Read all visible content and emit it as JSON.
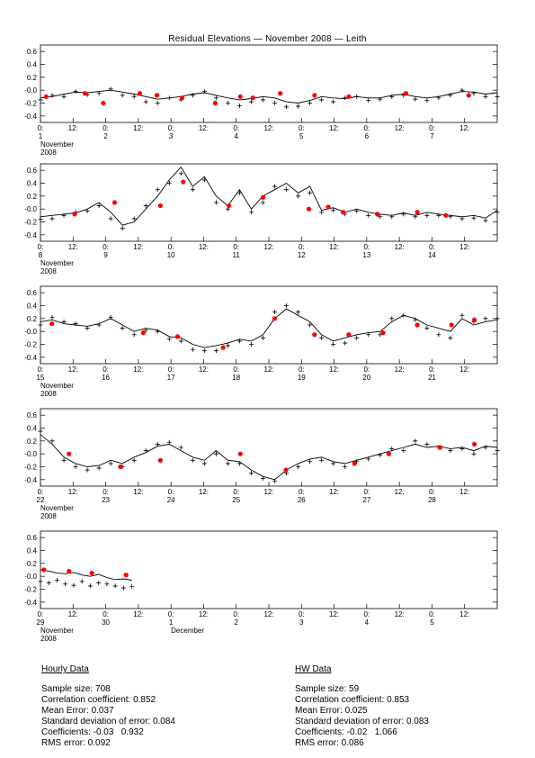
{
  "page": {
    "title": "Residual Elevations — November 2008 — Leith"
  },
  "month_label": "November",
  "year_label": "2008",
  "december_label": "December",
  "stats": {
    "hourly": {
      "heading": "Hourly Data",
      "lines": [
        "Sample size: 708",
        "Correlation coefficient: 0.852",
        "Mean Error: 0.037",
        "Standard deviation of error: 0.084",
        "Coefficients: -0.03   0.932",
        "RMS error: 0.092"
      ]
    },
    "hw": {
      "heading": "HW Data",
      "lines": [
        "Sample size: 59",
        "Correlation coefficient: 0.853",
        "Mean Error: 0.025",
        "Standard deviation of error: 0.083",
        "Coefficients: -0.02   1.066",
        "RMS error: 0.086"
      ]
    }
  },
  "colors": {
    "line": "#000000",
    "observed_cross": "#000000",
    "hw_marker": "#ff0000"
  },
  "chart_data": [
    {
      "type": "line",
      "panel": "Nov 1-7",
      "x_ticks": [
        "0:",
        "12:",
        "0:",
        "12:",
        "0:",
        "12:",
        "0:",
        "12:",
        "0:",
        "12:",
        "0:",
        "12:",
        "0:",
        "12:"
      ],
      "day_labels": [
        "1",
        "2",
        "3",
        "4",
        "5",
        "6",
        "7"
      ],
      "ylim": [
        -0.5,
        0.7
      ],
      "y_ticks": [
        "-0.4",
        "-0.2",
        "-0.0",
        "0.2",
        "0.4",
        "0.6"
      ],
      "series": [
        {
          "role": "model_line",
          "values": [
            -0.12,
            -0.1,
            -0.06,
            -0.03,
            -0.04,
            -0.02,
            0.0,
            -0.03,
            -0.06,
            -0.1,
            -0.14,
            -0.12,
            -0.1,
            -0.06,
            -0.04,
            -0.08,
            -0.12,
            -0.15,
            -0.13,
            -0.1,
            -0.12,
            -0.18,
            -0.2,
            -0.16,
            -0.1,
            -0.12,
            -0.13,
            -0.1,
            -0.12,
            -0.12,
            -0.08,
            -0.06,
            -0.1,
            -0.12,
            -0.1,
            -0.06,
            -0.02,
            -0.03,
            -0.06,
            -0.04
          ]
        },
        {
          "role": "observed",
          "values": [
            -0.15,
            -0.08,
            -0.1,
            -0.02,
            -0.07,
            -0.05,
            0.02,
            -0.08,
            -0.1,
            -0.18,
            -0.2,
            -0.12,
            -0.15,
            -0.08,
            -0.02,
            -0.12,
            -0.2,
            -0.24,
            -0.18,
            -0.15,
            -0.2,
            -0.26,
            -0.25,
            -0.2,
            -0.15,
            -0.18,
            -0.12,
            -0.1,
            -0.16,
            -0.14,
            -0.1,
            -0.08,
            -0.14,
            -0.16,
            -0.12,
            -0.08,
            0.0,
            -0.05,
            -0.1,
            -0.1
          ]
        },
        {
          "role": "hw_points",
          "x": [
            0.5,
            3.9,
            5.5,
            8.7,
            10.2,
            12.4,
            15.3,
            17.5,
            18.6,
            21.0,
            24.0,
            27.0,
            32.0,
            37.5
          ],
          "values": [
            -0.1,
            -0.05,
            -0.2,
            -0.05,
            -0.08,
            -0.12,
            -0.2,
            -0.1,
            -0.12,
            -0.05,
            -0.08,
            -0.1,
            -0.05,
            -0.08
          ]
        }
      ]
    },
    {
      "type": "line",
      "panel": "Nov 8-14",
      "x_ticks": [
        "0:",
        "12:",
        "0:",
        "12:",
        "0:",
        "12:",
        "0:",
        "12:",
        "0:",
        "12:",
        "0:",
        "12:",
        "0:",
        "12:"
      ],
      "day_labels": [
        "8",
        "9",
        "10",
        "11",
        "12",
        "13",
        "14"
      ],
      "ylim": [
        -0.5,
        0.7
      ],
      "y_ticks": [
        "-0.4",
        "-0.2",
        "-0.0",
        "0.2",
        "0.4",
        "0.6"
      ],
      "series": [
        {
          "role": "model_line",
          "values": [
            -0.12,
            -0.1,
            -0.08,
            -0.06,
            0.0,
            0.1,
            -0.05,
            -0.25,
            -0.2,
            0.0,
            0.2,
            0.45,
            0.65,
            0.35,
            0.5,
            0.2,
            0.05,
            0.3,
            0.0,
            0.2,
            0.3,
            0.4,
            0.25,
            0.35,
            -0.02,
            0.02,
            -0.05,
            0.0,
            -0.05,
            -0.08,
            -0.1,
            -0.06,
            -0.1,
            -0.05,
            -0.08,
            -0.1,
            -0.12,
            -0.1,
            -0.14,
            -0.02
          ]
        },
        {
          "role": "observed",
          "values": [
            -0.16,
            -0.15,
            -0.1,
            -0.05,
            -0.03,
            0.05,
            -0.15,
            -0.3,
            -0.15,
            0.05,
            0.3,
            0.4,
            0.55,
            0.3,
            0.45,
            0.1,
            0.0,
            0.25,
            -0.05,
            0.1,
            0.35,
            0.3,
            0.2,
            0.25,
            -0.05,
            -0.02,
            -0.08,
            -0.03,
            -0.1,
            -0.12,
            -0.12,
            -0.08,
            -0.12,
            -0.1,
            -0.1,
            -0.12,
            -0.15,
            -0.14,
            -0.18,
            -0.05
          ]
        },
        {
          "role": "hw_points",
          "x": [
            3.0,
            6.5,
            10.5,
            12.5,
            16.5,
            19.5,
            23.5,
            25.2,
            26.5,
            29.5,
            33.0,
            35.5
          ],
          "values": [
            -0.08,
            0.1,
            0.05,
            0.42,
            0.05,
            0.18,
            0.0,
            0.03,
            -0.05,
            -0.08,
            -0.05,
            -0.1
          ]
        }
      ]
    },
    {
      "type": "line",
      "panel": "Nov 15-21",
      "x_ticks": [
        "0:",
        "12:",
        "0:",
        "12:",
        "0:",
        "12:",
        "0:",
        "12:",
        "0:",
        "12:",
        "0:",
        "12:",
        "0:",
        "12:"
      ],
      "day_labels": [
        "15",
        "16",
        "17",
        "18",
        "19",
        "20",
        "21"
      ],
      "ylim": [
        -0.5,
        0.7
      ],
      "y_ticks": [
        "-0.4",
        "-0.2",
        "-0.0",
        "0.2",
        "0.4",
        "0.6"
      ],
      "series": [
        {
          "role": "model_line",
          "values": [
            0.15,
            0.18,
            0.12,
            0.1,
            0.08,
            0.12,
            0.2,
            0.1,
            0.0,
            0.05,
            0.02,
            -0.08,
            -0.1,
            -0.2,
            -0.25,
            -0.22,
            -0.18,
            -0.12,
            -0.15,
            -0.05,
            0.2,
            0.35,
            0.25,
            0.15,
            -0.05,
            -0.15,
            -0.1,
            -0.05,
            -0.02,
            0.0,
            0.15,
            0.25,
            0.2,
            0.1,
            0.05,
            0.0,
            0.2,
            0.1,
            0.15,
            0.18
          ]
        },
        {
          "role": "observed",
          "values": [
            0.1,
            0.22,
            0.15,
            0.12,
            0.05,
            0.1,
            0.22,
            0.05,
            -0.05,
            0.02,
            0.0,
            -0.12,
            -0.15,
            -0.28,
            -0.3,
            -0.3,
            -0.22,
            -0.15,
            -0.2,
            -0.1,
            0.3,
            0.4,
            0.3,
            0.1,
            -0.1,
            -0.2,
            -0.18,
            -0.1,
            -0.05,
            -0.05,
            0.2,
            0.25,
            0.18,
            0.05,
            -0.05,
            -0.1,
            0.25,
            0.15,
            0.2,
            0.2
          ]
        },
        {
          "role": "hw_points",
          "x": [
            1.0,
            9.0,
            12.0,
            16.0,
            20.5,
            24.0,
            27.0,
            30.0,
            33.0,
            36.0,
            38.0
          ],
          "values": [
            0.12,
            -0.02,
            -0.08,
            -0.25,
            0.2,
            -0.05,
            -0.05,
            -0.02,
            0.1,
            0.1,
            0.18
          ]
        }
      ]
    },
    {
      "type": "line",
      "panel": "Nov 22-28",
      "x_ticks": [
        "0:",
        "12:",
        "0:",
        "12:",
        "0:",
        "12:",
        "0:",
        "12:",
        "0:",
        "12:",
        "0:",
        "12:",
        "0:",
        "12:"
      ],
      "day_labels": [
        "22",
        "23",
        "24",
        "25",
        "26",
        "27",
        "28"
      ],
      "ylim": [
        -0.5,
        0.7
      ],
      "y_ticks": [
        "-0.4",
        "-0.2",
        "-0.0",
        "0.2",
        "0.4",
        "0.6"
      ],
      "series": [
        {
          "role": "model_line",
          "values": [
            0.3,
            0.15,
            -0.05,
            -0.15,
            -0.2,
            -0.18,
            -0.1,
            -0.15,
            -0.05,
            0.02,
            0.12,
            0.15,
            0.05,
            -0.05,
            -0.1,
            0.05,
            -0.1,
            -0.12,
            -0.25,
            -0.35,
            -0.4,
            -0.25,
            -0.15,
            -0.08,
            -0.05,
            -0.12,
            -0.15,
            -0.1,
            -0.05,
            0.0,
            0.05,
            0.1,
            0.15,
            0.1,
            0.12,
            0.08,
            0.1,
            0.05,
            0.12,
            0.1
          ]
        },
        {
          "role": "observed",
          "values": [
            0.35,
            0.2,
            -0.1,
            -0.2,
            -0.25,
            -0.22,
            -0.15,
            -0.2,
            -0.1,
            0.05,
            0.15,
            0.18,
            0.1,
            -0.1,
            -0.15,
            0.0,
            -0.15,
            -0.15,
            -0.3,
            -0.38,
            -0.42,
            -0.3,
            -0.2,
            -0.12,
            -0.1,
            -0.15,
            -0.2,
            -0.12,
            -0.08,
            -0.02,
            0.08,
            0.05,
            0.2,
            0.15,
            0.1,
            0.05,
            0.08,
            0.0,
            0.1,
            0.05
          ]
        },
        {
          "role": "hw_points",
          "x": [
            2.5,
            7.0,
            10.5,
            17.5,
            21.5,
            27.5,
            30.5,
            35.0,
            38.0
          ],
          "values": [
            0.0,
            -0.2,
            -0.1,
            0.0,
            -0.25,
            -0.15,
            0.0,
            0.1,
            0.15
          ]
        }
      ]
    },
    {
      "type": "line",
      "panel": "Nov 29-30",
      "x_ticks": [
        "0:",
        "12:",
        "0:",
        "12:",
        "0:",
        "12:",
        "0:",
        "12:",
        "0:",
        "12:",
        "0:",
        "12:",
        "0:",
        "12:"
      ],
      "day_labels": [
        "29",
        "30",
        "1",
        "2",
        "3",
        "4",
        "5"
      ],
      "ylim": [
        -0.5,
        0.7
      ],
      "y_ticks": [
        "-0.4",
        "-0.2",
        "-0.0",
        "0.2",
        "0.4",
        "0.6"
      ],
      "series": [
        {
          "role": "model_line",
          "values": [
            0.1,
            0.08,
            0.05,
            0.04,
            0.06,
            0.02,
            0.0,
            0.03,
            -0.02,
            -0.05,
            -0.04,
            -0.06
          ]
        },
        {
          "role": "observed",
          "values": [
            -0.08,
            -0.1,
            -0.06,
            -0.12,
            -0.14,
            -0.08,
            -0.15,
            -0.1,
            -0.12,
            -0.15,
            -0.18,
            -0.16
          ]
        },
        {
          "role": "hw_points",
          "x": [
            0.3,
            2.5,
            4.5,
            7.5
          ],
          "values": [
            0.1,
            0.08,
            0.05,
            0.02
          ]
        }
      ]
    }
  ]
}
